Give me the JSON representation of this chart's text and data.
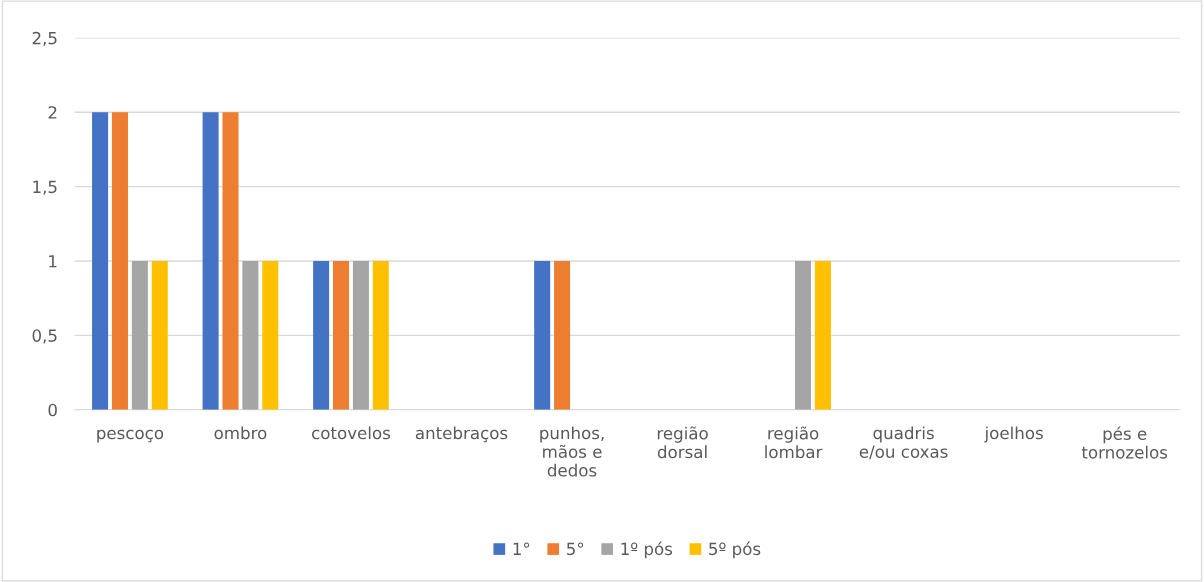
{
  "chart_data": {
    "type": "bar",
    "categories": [
      "pescoço",
      "ombro",
      "cotovelos",
      "antebraços",
      "punhos,\nmãos e\ndedos",
      "região\ndorsal",
      "região\nlombar",
      "quadris\ne/ou coxas",
      "joelhos",
      "pés e\ntornozelos"
    ],
    "series": [
      {
        "name": "1°",
        "color": "#4472c4",
        "values": [
          2,
          2,
          1,
          0,
          1,
          0,
          0,
          0,
          0,
          0
        ]
      },
      {
        "name": "5°",
        "color": "#ed7d31",
        "values": [
          2,
          2,
          1,
          0,
          1,
          0,
          0,
          0,
          0,
          0
        ]
      },
      {
        "name": "1º pós",
        "color": "#a5a5a5",
        "values": [
          1,
          1,
          1,
          0,
          0,
          0,
          1,
          0,
          0,
          0
        ]
      },
      {
        "name": "5º pós",
        "color": "#ffc000",
        "values": [
          1,
          1,
          1,
          0,
          0,
          0,
          1,
          0,
          0,
          0
        ]
      }
    ],
    "ylim": [
      0,
      2.5
    ],
    "yticks": [
      {
        "value": 0,
        "label": "0"
      },
      {
        "value": 0.5,
        "label": "0,5"
      },
      {
        "value": 1,
        "label": "1"
      },
      {
        "value": 1.5,
        "label": "1,5"
      },
      {
        "value": 2,
        "label": "2"
      },
      {
        "value": 2.5,
        "label": "2,5"
      }
    ],
    "grid": "y",
    "legend": "bottom"
  }
}
